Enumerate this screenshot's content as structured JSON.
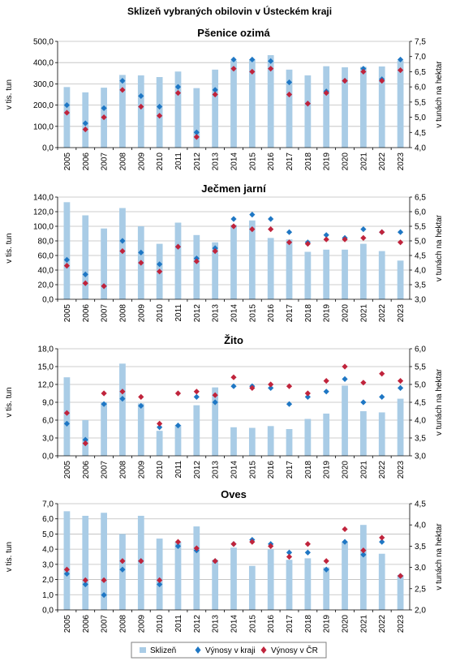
{
  "title": "Sklizeň vybraných obilovin v Ústeckém  kraji",
  "colors": {
    "bar": "#a9cce6",
    "diamond_kraj": "#1f77c4",
    "diamond_cr": "#c0243c",
    "grid": "#bdbdbd"
  },
  "legend": {
    "bar": "Sklizeň",
    "kraj": "Výnosy v kraji",
    "cr": "Výnosy v ČR"
  },
  "chart_data": [
    {
      "type": "bar",
      "title": "Pšenice ozimá",
      "ylabel_left": "v tis. tun",
      "ylabel_right": "v tunách na hektar",
      "categories": [
        "2005",
        "2006",
        "2007",
        "2008",
        "2009",
        "2010",
        "2011",
        "2012",
        "2013",
        "2014",
        "2015",
        "2016",
        "2017",
        "2018",
        "2019",
        "2020",
        "2021",
        "2022",
        "2023"
      ],
      "left_ticks": [
        "0,0",
        "100,0",
        "200,0",
        "300,0",
        "400,0",
        "500,0"
      ],
      "right_ticks": [
        "4,0",
        "4,5",
        "5,0",
        "5,5",
        "6,0",
        "6,5",
        "7,0",
        "7,5"
      ],
      "ylim_left": [
        0,
        500
      ],
      "ylim_right": [
        4.0,
        7.5
      ],
      "series": [
        {
          "name": "Sklizeň",
          "axis": "left",
          "values": [
            285,
            260,
            282,
            342,
            340,
            332,
            358,
            280,
            367,
            410,
            415,
            435,
            367,
            340,
            383,
            378,
            380,
            382,
            410
          ]
        },
        {
          "name": "Výnosy v kraji",
          "axis": "right",
          "values": [
            5.4,
            4.8,
            5.3,
            6.2,
            5.7,
            5.35,
            6.0,
            4.5,
            5.9,
            6.9,
            6.9,
            6.85,
            6.15,
            5.45,
            5.85,
            6.2,
            6.6,
            6.25,
            6.9
          ]
        },
        {
          "name": "Výnosy v ČR",
          "axis": "right",
          "values": [
            5.15,
            4.6,
            5.0,
            5.9,
            5.35,
            5.05,
            5.8,
            4.35,
            5.75,
            6.6,
            6.5,
            6.6,
            5.75,
            5.45,
            5.8,
            6.2,
            6.5,
            6.2,
            6.55
          ]
        }
      ]
    },
    {
      "type": "bar",
      "title": "Ječmen jarní",
      "ylabel_left": "v tis. tun",
      "ylabel_right": "v tunách na hektar",
      "categories": [
        "2005",
        "2006",
        "2007",
        "2008",
        "2009",
        "2010",
        "2011",
        "2012",
        "2013",
        "2014",
        "2015",
        "2016",
        "2017",
        "2018",
        "2019",
        "2020",
        "2021",
        "2022",
        "2023"
      ],
      "left_ticks": [
        "0,0",
        "20,0",
        "40,0",
        "60,0",
        "80,0",
        "100,0",
        "120,0",
        "140,0"
      ],
      "right_ticks": [
        "3,0",
        "3,5",
        "4,0",
        "4,5",
        "5,0",
        "5,5",
        "6,0",
        "6,5"
      ],
      "ylim_left": [
        0,
        140
      ],
      "ylim_right": [
        3.0,
        6.5
      ],
      "series": [
        {
          "name": "Sklizeň",
          "axis": "left",
          "values": [
            133,
            115,
            97,
            125,
            100,
            76,
            105,
            88,
            78,
            102,
            108,
            84,
            82,
            65,
            68,
            68,
            76,
            66,
            53
          ]
        },
        {
          "name": "Výnosy v kraji",
          "axis": "right",
          "values": [
            4.35,
            3.85,
            3.45,
            5.0,
            4.6,
            4.2,
            4.8,
            4.4,
            4.75,
            5.75,
            5.9,
            5.75,
            5.3,
            4.95,
            5.2,
            5.1,
            5.4,
            5.3,
            5.3
          ]
        },
        {
          "name": "Výnosy v ČR",
          "axis": "right",
          "values": [
            4.15,
            3.55,
            3.45,
            4.65,
            4.25,
            3.95,
            4.8,
            4.3,
            4.65,
            5.5,
            5.4,
            5.4,
            4.95,
            4.9,
            5.05,
            5.05,
            5.1,
            5.3,
            4.95
          ]
        }
      ]
    },
    {
      "type": "bar",
      "title": "Žito",
      "ylabel_left": "v tis. tun",
      "ylabel_right": "v tunách na hektar",
      "categories": [
        "2005",
        "2006",
        "2007",
        "2008",
        "2009",
        "2010",
        "2011",
        "2012",
        "2013",
        "2014",
        "2015",
        "2016",
        "2017",
        "2018",
        "2019",
        "2020",
        "2021",
        "2022",
        "2023"
      ],
      "left_ticks": [
        "0,0",
        "3,0",
        "6,0",
        "9,0",
        "12,0",
        "15,0",
        "18,0"
      ],
      "right_ticks": [
        "3,0",
        "3,5",
        "4,0",
        "4,5",
        "5,0",
        "5,5",
        "6,0"
      ],
      "ylim_left": [
        0,
        18
      ],
      "ylim_right": [
        3.0,
        6.0
      ],
      "series": [
        {
          "name": "Sklizeň",
          "axis": "left",
          "values": [
            13.2,
            6.0,
            9.0,
            15.5,
            8.8,
            4.2,
            5.2,
            8.5,
            11.5,
            4.8,
            4.7,
            5.0,
            4.5,
            6.2,
            7.1,
            11.8,
            7.5,
            7.3,
            9.6
          ]
        },
        {
          "name": "Výnosy v kraji",
          "axis": "right",
          "values": [
            3.9,
            3.45,
            4.45,
            4.6,
            4.4,
            3.8,
            3.85,
            4.65,
            4.5,
            4.95,
            4.95,
            4.9,
            4.45,
            4.65,
            4.8,
            5.15,
            4.5,
            4.65,
            4.9
          ]
        },
        {
          "name": "Výnosy v ČR",
          "axis": "right",
          "values": [
            4.2,
            3.35,
            4.75,
            4.8,
            4.65,
            3.9,
            4.75,
            4.8,
            4.7,
            5.2,
            4.9,
            5.0,
            4.95,
            4.75,
            5.1,
            5.5,
            5.05,
            5.3,
            5.1
          ]
        }
      ]
    },
    {
      "type": "bar",
      "title": "Oves",
      "ylabel_left": "v tis. tun",
      "ylabel_right": "v tunách na hektar",
      "categories": [
        "2005",
        "2006",
        "2007",
        "2008",
        "2009",
        "2010",
        "2011",
        "2012",
        "2013",
        "2014",
        "2015",
        "2016",
        "2017",
        "2018",
        "2019",
        "2020",
        "2021",
        "2022",
        "2023"
      ],
      "left_ticks": [
        "0,0",
        "1,0",
        "2,0",
        "3,0",
        "4,0",
        "5,0",
        "6,0",
        "7,0"
      ],
      "right_ticks": [
        "2,0",
        "2,5",
        "3,0",
        "3,5",
        "4,0",
        "4,5"
      ],
      "ylim_left": [
        0,
        7
      ],
      "ylim_right": [
        2.0,
        4.5
      ],
      "series": [
        {
          "name": "Sklizeň",
          "axis": "left",
          "values": [
            6.5,
            6.2,
            6.4,
            5.0,
            6.2,
            4.7,
            4.5,
            5.5,
            3.3,
            4.1,
            2.9,
            4.0,
            3.3,
            3.4,
            2.8,
            4.5,
            5.6,
            3.7,
            2.3
          ]
        },
        {
          "name": "Výnosy v kraji",
          "axis": "right",
          "values": [
            2.85,
            2.6,
            2.35,
            2.95,
            3.15,
            2.6,
            3.5,
            3.4,
            3.15,
            3.55,
            3.65,
            3.55,
            3.35,
            3.35,
            2.95,
            3.6,
            3.3,
            3.6,
            2.8
          ]
        },
        {
          "name": "Výnosy v ČR",
          "axis": "right",
          "values": [
            2.95,
            2.7,
            2.7,
            3.15,
            3.15,
            2.7,
            3.6,
            3.45,
            3.15,
            3.55,
            3.6,
            3.5,
            3.25,
            3.55,
            3.15,
            3.9,
            3.4,
            3.7,
            2.8
          ]
        }
      ]
    }
  ]
}
